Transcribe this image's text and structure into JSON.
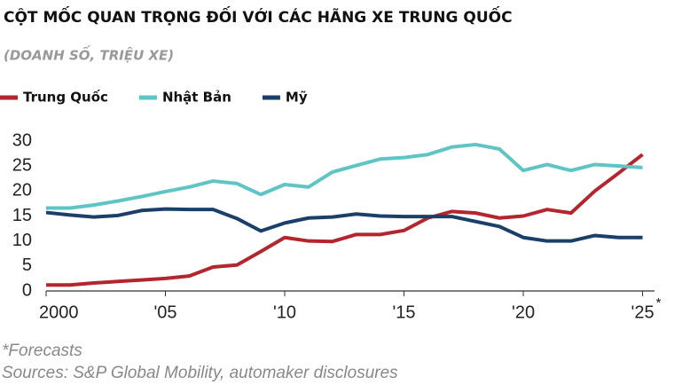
{
  "chart_data": {
    "type": "line",
    "title": "CỘT MỐC QUAN TRỌNG ĐỐI VỚI CÁC HÃNG XE TRUNG QUỐC",
    "subtitle": "(DOANH SỐ, TRIỆU XE)",
    "x": [
      2000,
      2001,
      2002,
      2003,
      2004,
      2005,
      2006,
      2007,
      2008,
      2009,
      2010,
      2011,
      2012,
      2013,
      2014,
      2015,
      2016,
      2017,
      2018,
      2019,
      2020,
      2021,
      2022,
      2023,
      2024,
      2025
    ],
    "series": [
      {
        "name": "Trung Quốc",
        "color": "#b3262e",
        "values": [
          1.2,
          1.2,
          1.6,
          1.9,
          2.2,
          2.5,
          3.0,
          4.8,
          5.2,
          7.9,
          10.7,
          10.0,
          9.9,
          11.3,
          11.3,
          12.1,
          14.6,
          15.9,
          15.6,
          14.6,
          15.0,
          16.3,
          15.6,
          20.0,
          23.6,
          27.3
        ]
      },
      {
        "name": "Nhật Bản",
        "color": "#5ec4c4",
        "values": [
          16.6,
          16.6,
          17.2,
          18.0,
          18.9,
          19.9,
          20.8,
          22.0,
          21.5,
          19.3,
          21.3,
          20.8,
          23.8,
          25.1,
          26.4,
          26.7,
          27.3,
          28.8,
          29.3,
          28.4,
          24.1,
          25.3,
          24.1,
          25.3,
          25.0,
          24.7
        ]
      },
      {
        "name": "Mỹ",
        "color": "#1b3f6b",
        "values": [
          15.7,
          15.2,
          14.8,
          15.1,
          16.1,
          16.4,
          16.3,
          16.3,
          14.5,
          12.0,
          13.6,
          14.6,
          14.8,
          15.4,
          15.0,
          14.9,
          14.9,
          14.9,
          13.9,
          12.9,
          10.7,
          10.0,
          10.0,
          11.1,
          10.7,
          10.7
        ]
      }
    ],
    "xlim": [
      2000,
      2025.5
    ],
    "xticks": [
      2000,
      {
        "value": 2005,
        "label": "'05"
      },
      {
        "value": 2010,
        "label": "'10"
      },
      {
        "value": 2015,
        "label": "'15"
      },
      {
        "value": 2020,
        "label": "'20"
      },
      {
        "value": 2025,
        "label": "'25"
      }
    ],
    "forecast_mark": "*",
    "ylim": [
      0,
      30
    ],
    "yticks": [
      0,
      5,
      10,
      15,
      20,
      25,
      30
    ],
    "grid": false,
    "footnote": "*Forecasts",
    "source": "Sources: S&P Global Mobility, automaker disclosures"
  }
}
